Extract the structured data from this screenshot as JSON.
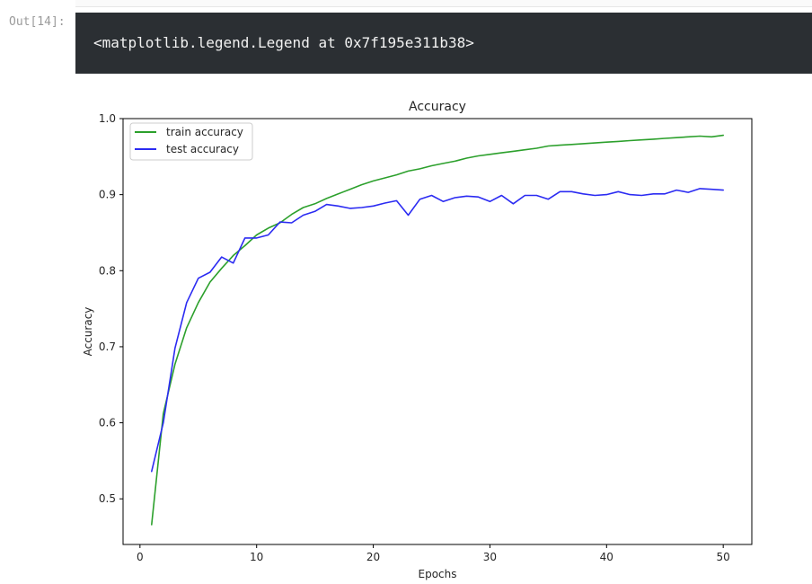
{
  "cell": {
    "prompt": "Out[14]:",
    "output_text": "<matplotlib.legend.Legend at 0x7f195e311b38>"
  },
  "chart_data": {
    "type": "line",
    "title": "Accuracy",
    "xlabel": "Epochs",
    "ylabel": "Accuracy",
    "xlim": [
      -1.45,
      52.45
    ],
    "ylim": [
      0.44,
      1.0
    ],
    "xticks": [
      0,
      10,
      20,
      30,
      40,
      50
    ],
    "yticks": [
      0.5,
      0.6,
      0.7,
      0.8,
      0.9,
      1.0
    ],
    "tick_labels": {
      "x": [
        "0",
        "10",
        "20",
        "30",
        "40",
        "50"
      ],
      "y": [
        "0.5",
        "0.6",
        "0.7",
        "0.8",
        "0.9",
        "1.0"
      ]
    },
    "grid": false,
    "legend": "top-left",
    "x": [
      1,
      2,
      3,
      4,
      5,
      6,
      7,
      8,
      9,
      10,
      11,
      12,
      13,
      14,
      15,
      16,
      17,
      18,
      19,
      20,
      21,
      22,
      23,
      24,
      25,
      26,
      27,
      28,
      29,
      30,
      31,
      32,
      33,
      34,
      35,
      36,
      37,
      38,
      39,
      40,
      41,
      42,
      43,
      44,
      45,
      46,
      47,
      48,
      49,
      50
    ],
    "series": [
      {
        "name": "train accuracy",
        "color": "#2ca02c",
        "values": [
          0.466,
          0.612,
          0.677,
          0.725,
          0.758,
          0.785,
          0.803,
          0.82,
          0.833,
          0.847,
          0.856,
          0.863,
          0.874,
          0.883,
          0.888,
          0.895,
          0.901,
          0.907,
          0.913,
          0.918,
          0.922,
          0.926,
          0.931,
          0.934,
          0.938,
          0.941,
          0.944,
          0.948,
          0.951,
          0.953,
          0.955,
          0.957,
          0.959,
          0.961,
          0.964,
          0.965,
          0.966,
          0.967,
          0.968,
          0.969,
          0.97,
          0.971,
          0.972,
          0.973,
          0.974,
          0.975,
          0.976,
          0.977,
          0.976,
          0.978
        ]
      },
      {
        "name": "test accuracy",
        "color": "#2b2bf2",
        "values": [
          0.536,
          0.6,
          0.698,
          0.758,
          0.79,
          0.798,
          0.818,
          0.81,
          0.843,
          0.843,
          0.847,
          0.864,
          0.863,
          0.873,
          0.878,
          0.887,
          0.885,
          0.882,
          0.883,
          0.885,
          0.889,
          0.892,
          0.873,
          0.894,
          0.899,
          0.891,
          0.896,
          0.898,
          0.897,
          0.891,
          0.899,
          0.888,
          0.899,
          0.899,
          0.894,
          0.904,
          0.904,
          0.901,
          0.899,
          0.9,
          0.904,
          0.9,
          0.899,
          0.901,
          0.901,
          0.906,
          0.903,
          0.908,
          0.907,
          0.906
        ]
      }
    ]
  }
}
